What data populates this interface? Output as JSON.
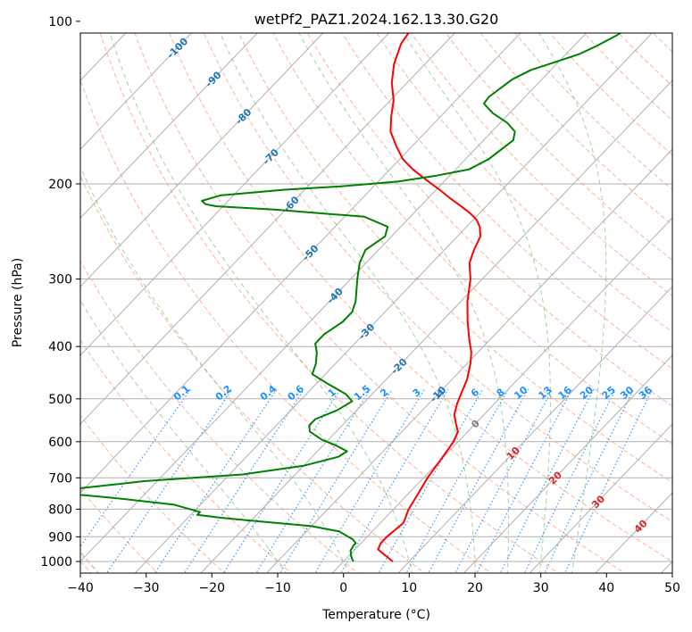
{
  "chart_data": {
    "type": "line",
    "title": "wetPf2_PAZ1.2024.162.13.30.G20",
    "xlabel": "Temperature (°C)",
    "ylabel": "Pressure (hPa)",
    "xlim": [
      -40,
      50
    ],
    "ylim": [
      1050,
      100
    ],
    "y_scale": "log",
    "skew": "skew-T",
    "grid": true,
    "x_ticks": [
      "−40",
      "−30",
      "−20",
      "−10",
      "0",
      "10",
      "20",
      "30",
      "40",
      "50"
    ],
    "y_ticks": [
      "100",
      "200",
      "300",
      "400",
      "500",
      "600",
      "700",
      "800",
      "900",
      "1000"
    ],
    "series": [
      {
        "color": "#ff0000",
        "points": [
          [
            7.5,
            1000
          ],
          [
            5.5,
            975
          ],
          [
            3.5,
            950
          ],
          [
            3,
            925
          ],
          [
            3,
            900
          ],
          [
            3.3,
            870
          ],
          [
            3.5,
            850
          ],
          [
            3.2,
            835
          ],
          [
            2.8,
            820
          ],
          [
            2.3,
            800
          ],
          [
            1.5,
            750
          ],
          [
            0.6,
            700
          ],
          [
            0,
            650
          ],
          [
            -0.7,
            600
          ],
          [
            -1.5,
            575
          ],
          [
            -3,
            555
          ],
          [
            -4.5,
            535
          ],
          [
            -5.7,
            510
          ],
          [
            -6.5,
            490
          ],
          [
            -7.7,
            460
          ],
          [
            -9.5,
            430
          ],
          [
            -11,
            410
          ],
          [
            -13,
            390
          ],
          [
            -16,
            360
          ],
          [
            -19,
            330
          ],
          [
            -21.8,
            300
          ],
          [
            -24.3,
            280
          ],
          [
            -25.5,
            265
          ],
          [
            -26.5,
            250
          ],
          [
            -28,
            240
          ],
          [
            -29.5,
            233
          ],
          [
            -31.3,
            227
          ],
          [
            -33.8,
            220
          ],
          [
            -36.5,
            213
          ],
          [
            -39.5,
            205
          ],
          [
            -43.2,
            196
          ],
          [
            -46.5,
            188
          ],
          [
            -49.5,
            180
          ],
          [
            -52.5,
            170
          ],
          [
            -55.4,
            160
          ],
          [
            -57.5,
            150
          ],
          [
            -59.5,
            140
          ],
          [
            -62.3,
            130
          ],
          [
            -64.7,
            120
          ],
          [
            -66.6,
            110
          ],
          [
            -67.5,
            100
          ]
        ]
      },
      {
        "color": "#008000",
        "points": [
          [
            1.5,
            1000
          ],
          [
            0.5,
            980
          ],
          [
            -0.5,
            955
          ],
          [
            -0.8,
            935
          ],
          [
            -0.8,
            925
          ],
          [
            -1.8,
            910
          ],
          [
            -5,
            880
          ],
          [
            -10,
            860
          ],
          [
            -20,
            840
          ],
          [
            -25,
            830
          ],
          [
            -29,
            820
          ],
          [
            -29,
            810
          ],
          [
            -34,
            785
          ],
          [
            -43,
            765
          ],
          [
            -54,
            745
          ],
          [
            -55,
            740
          ],
          [
            -52,
            735
          ],
          [
            -48,
            725
          ],
          [
            -42,
            710
          ],
          [
            -28,
            690
          ],
          [
            -20,
            665
          ],
          [
            -16,
            640
          ],
          [
            -15.5,
            625
          ],
          [
            -18,
            610
          ],
          [
            -21,
            595
          ],
          [
            -24,
            575
          ],
          [
            -25,
            560
          ],
          [
            -25,
            545
          ],
          [
            -23,
            525
          ],
          [
            -22,
            505
          ],
          [
            -24,
            490
          ],
          [
            -28,
            470
          ],
          [
            -32,
            450
          ],
          [
            -33,
            430
          ],
          [
            -34.5,
            410
          ],
          [
            -36,
            395
          ],
          [
            -36,
            380
          ],
          [
            -35,
            360
          ],
          [
            -35,
            345
          ],
          [
            -36,
            330
          ],
          [
            -39,
            300
          ],
          [
            -41,
            280
          ],
          [
            -42,
            265
          ],
          [
            -41,
            250
          ],
          [
            -42,
            240
          ],
          [
            -47,
            230
          ],
          [
            -62,
            223
          ],
          [
            -71,
            220
          ],
          [
            -73,
            218
          ],
          [
            -74,
            215
          ],
          [
            -72,
            210
          ],
          [
            -63,
            205
          ],
          [
            -55,
            202
          ],
          [
            -47,
            198
          ],
          [
            -42,
            193
          ],
          [
            -38,
            188
          ],
          [
            -36.5,
            180
          ],
          [
            -36,
            173
          ],
          [
            -35.5,
            166
          ],
          [
            -36.5,
            160
          ],
          [
            -39,
            154
          ],
          [
            -42.5,
            148
          ],
          [
            -45.3,
            142
          ],
          [
            -45.5,
            138
          ],
          [
            -45,
            133
          ],
          [
            -44.5,
            128
          ],
          [
            -43,
            123
          ],
          [
            -40.5,
            119
          ],
          [
            -38,
            115
          ],
          [
            -36.5,
            111
          ],
          [
            -35,
            106
          ],
          [
            -34,
            101
          ],
          [
            -33.5,
            100
          ]
        ]
      }
    ],
    "dry_adiabat_labels": [
      "-100",
      "-90",
      "-80",
      "-70",
      "-60",
      "-50",
      "-40",
      "-30",
      "-20",
      "-10",
      "0",
      "10",
      "20",
      "30",
      "40"
    ],
    "mixing_ratio_labels": [
      "0.1",
      "0.2",
      "0.4",
      "0.6",
      "1",
      "1.5",
      "2",
      "3",
      "4",
      "6",
      "8",
      "10",
      "13",
      "16",
      "20",
      "25",
      "30",
      "36"
    ],
    "colors": {
      "temperature": "#ff0000",
      "dewpoint": "#008000",
      "dry_adiabat": "#ff7f50",
      "moist_adiabat": "#2ca02c",
      "mixing_ratio": "#1e90ff",
      "wet_bulb_adiabat": "#d2b48c",
      "dry_adiabat_label": "#d62728",
      "cold_label": "#1f77b4",
      "zero_label": "#808080",
      "grid": "#b0b0b0"
    }
  }
}
